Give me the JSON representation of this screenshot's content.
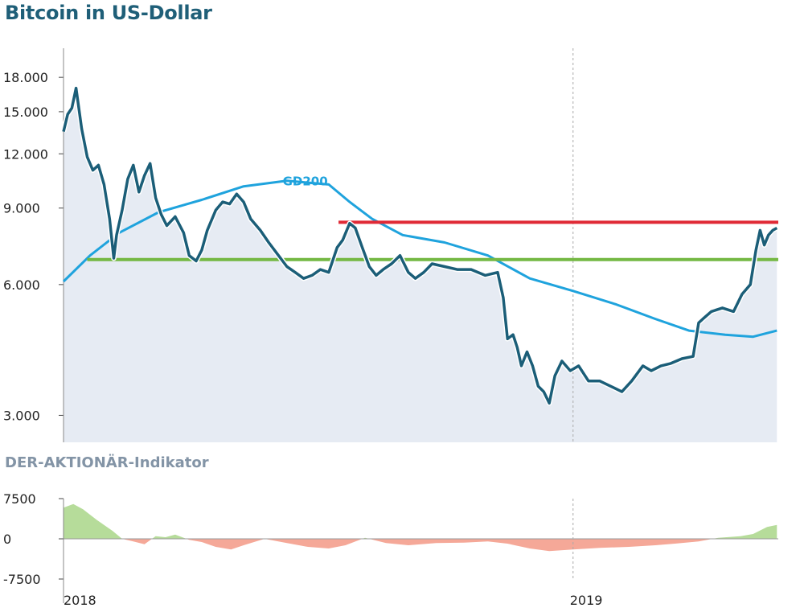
{
  "title": "Bitcoin in US-Dollar",
  "indicator_title": "DER-AKTIONÄR-Indikator",
  "colors": {
    "price_line": "#1b5e78",
    "price_fill": "#e6ebf3",
    "gd200_line": "#1fa3dd",
    "resistance_line": "#e02a36",
    "support_line": "#74b843",
    "indicator_positive": "#b6dc9a",
    "indicator_negative": "#f5a898",
    "grid": "#aaaaaa"
  },
  "chart_data": [
    {
      "type": "line",
      "title": "Bitcoin in US-Dollar",
      "yscale": "log",
      "ylim": [
        2600,
        21000
      ],
      "xlim": [
        "2018-01-01",
        "2019-05-28"
      ],
      "yticks": [
        3000,
        6000,
        9000,
        12000,
        15000,
        18000
      ],
      "ytick_labels": [
        "3.000",
        "6.000",
        "9.000",
        "12.000",
        "15.000",
        "18.000"
      ],
      "xticks": [
        "2018-01-01",
        "2019-01-01"
      ],
      "xtick_labels": [
        "2018",
        "2019"
      ],
      "grid": "vertical-dashed",
      "series": [
        {
          "name": "",
          "fill": true,
          "x": [
            "2018-01-01",
            "2018-01-04",
            "2018-01-07",
            "2018-01-10",
            "2018-01-14",
            "2018-01-18",
            "2018-01-22",
            "2018-01-26",
            "2018-01-30",
            "2018-02-03",
            "2018-02-06",
            "2018-02-08",
            "2018-02-12",
            "2018-02-16",
            "2018-02-20",
            "2018-02-24",
            "2018-02-28",
            "2018-03-04",
            "2018-03-08",
            "2018-03-12",
            "2018-03-16",
            "2018-03-22",
            "2018-03-28",
            "2018-04-01",
            "2018-04-06",
            "2018-04-10",
            "2018-04-14",
            "2018-04-20",
            "2018-04-25",
            "2018-04-30",
            "2018-05-05",
            "2018-05-10",
            "2018-05-15",
            "2018-05-22",
            "2018-05-28",
            "2018-06-04",
            "2018-06-10",
            "2018-06-16",
            "2018-06-22",
            "2018-06-28",
            "2018-07-04",
            "2018-07-10",
            "2018-07-16",
            "2018-07-20",
            "2018-07-25",
            "2018-07-29",
            "2018-08-03",
            "2018-08-08",
            "2018-08-13",
            "2018-08-18",
            "2018-08-24",
            "2018-08-30",
            "2018-09-05",
            "2018-09-10",
            "2018-09-16",
            "2018-09-22",
            "2018-10-01",
            "2018-10-10",
            "2018-10-20",
            "2018-10-30",
            "2018-11-08",
            "2018-11-12",
            "2018-11-15",
            "2018-11-19",
            "2018-11-22",
            "2018-11-25",
            "2018-11-29",
            "2018-12-03",
            "2018-12-07",
            "2018-12-11",
            "2018-12-15",
            "2018-12-19",
            "2018-12-24",
            "2018-12-30",
            "2019-01-05",
            "2019-01-12",
            "2019-01-20",
            "2019-01-28",
            "2019-02-05",
            "2019-02-12",
            "2019-02-20",
            "2019-02-26",
            "2019-03-05",
            "2019-03-12",
            "2019-03-20",
            "2019-03-28",
            "2019-04-01",
            "2019-04-04",
            "2019-04-10",
            "2019-04-18",
            "2019-04-26",
            "2019-05-02",
            "2019-05-08",
            "2019-05-12",
            "2019-05-15",
            "2019-05-18",
            "2019-05-21",
            "2019-05-24",
            "2019-05-27"
          ],
          "y": [
            13500,
            14800,
            15300,
            17000,
            13700,
            11800,
            11000,
            11300,
            10200,
            8500,
            6900,
            7800,
            8900,
            10500,
            11300,
            9800,
            10700,
            11400,
            9500,
            8700,
            8200,
            8600,
            7900,
            7000,
            6800,
            7200,
            8000,
            8900,
            9300,
            9200,
            9700,
            9300,
            8500,
            8000,
            7500,
            7000,
            6600,
            6400,
            6200,
            6300,
            6500,
            6400,
            7300,
            7600,
            8300,
            8100,
            7300,
            6600,
            6300,
            6500,
            6700,
            7000,
            6400,
            6200,
            6400,
            6700,
            6600,
            6500,
            6500,
            6300,
            6400,
            5600,
            4500,
            4600,
            4300,
            3900,
            4200,
            3900,
            3500,
            3400,
            3200,
            3700,
            4000,
            3800,
            3900,
            3600,
            3600,
            3500,
            3400,
            3600,
            3900,
            3800,
            3900,
            3950,
            4050,
            4100,
            4900,
            5000,
            5200,
            5300,
            5200,
            5700,
            6000,
            7200,
            8000,
            7400,
            7800,
            8000,
            8100
          ]
        },
        {
          "name": "GD200",
          "fill": false,
          "x": [
            "2018-01-01",
            "2018-01-20",
            "2018-02-10",
            "2018-03-10",
            "2018-04-10",
            "2018-05-10",
            "2018-06-10",
            "2018-07-10",
            "2018-07-25",
            "2018-08-10",
            "2018-09-01",
            "2018-10-01",
            "2018-11-01",
            "2018-12-01",
            "2019-01-01",
            "2019-02-01",
            "2019-03-01",
            "2019-03-25",
            "2019-04-20",
            "2019-05-10",
            "2019-05-27"
          ],
          "y": [
            6100,
            7000,
            7900,
            8800,
            9400,
            10100,
            10400,
            10200,
            9300,
            8500,
            7800,
            7500,
            7000,
            6200,
            5800,
            5400,
            5000,
            4700,
            4600,
            4550,
            4700
          ]
        }
      ],
      "hlines": [
        {
          "name": "resistance",
          "y": 8350,
          "x_start": "2018-07-17",
          "x_end": "2019-05-28",
          "color": "#e02a36"
        },
        {
          "name": "support",
          "y": 6850,
          "x_start": "2018-01-18",
          "x_end": "2019-05-28",
          "color": "#74b843"
        }
      ],
      "annotations": [
        {
          "text": "GD200",
          "x": "2018-06-07",
          "y": 10150,
          "color": "#1fa3dd"
        }
      ]
    },
    {
      "type": "area",
      "title": "DER-AKTIONÄR-Indikator",
      "ylim": [
        -7500,
        7500
      ],
      "xlim": [
        "2018-01-01",
        "2019-05-28"
      ],
      "yticks": [
        7500,
        0,
        -7500
      ],
      "ytick_labels": [
        "7500",
        "0",
        "-7500"
      ],
      "xticks": [
        "2018-01-01",
        "2019-01-01"
      ],
      "xtick_labels": [
        "2018",
        "2019"
      ],
      "grid": "vertical-dashed",
      "series": [
        {
          "name": "",
          "x": [
            "2018-01-01",
            "2018-01-08",
            "2018-01-15",
            "2018-01-25",
            "2018-02-05",
            "2018-02-12",
            "2018-02-20",
            "2018-02-28",
            "2018-03-08",
            "2018-03-15",
            "2018-03-22",
            "2018-04-01",
            "2018-04-10",
            "2018-04-20",
            "2018-05-01",
            "2018-05-10",
            "2018-05-25",
            "2018-06-10",
            "2018-06-25",
            "2018-07-10",
            "2018-07-22",
            "2018-08-05",
            "2018-08-20",
            "2018-09-05",
            "2018-09-25",
            "2018-10-15",
            "2018-11-01",
            "2018-11-15",
            "2018-12-01",
            "2018-12-15",
            "2019-01-01",
            "2019-01-20",
            "2019-02-10",
            "2019-03-01",
            "2019-03-15",
            "2019-04-01",
            "2019-04-15",
            "2019-05-01",
            "2019-05-10",
            "2019-05-20",
            "2019-05-27"
          ],
          "y": [
            5800,
            6500,
            5500,
            3500,
            1500,
            0,
            -500,
            -1000,
            500,
            300,
            800,
            -200,
            -600,
            -1500,
            -2000,
            -1200,
            0,
            -800,
            -1500,
            -1800,
            -1200,
            200,
            -800,
            -1200,
            -800,
            -700,
            -500,
            -900,
            -1800,
            -2300,
            -2000,
            -1700,
            -1500,
            -1200,
            -900,
            -500,
            200,
            500,
            900,
            2200,
            2600
          ]
        }
      ]
    }
  ]
}
